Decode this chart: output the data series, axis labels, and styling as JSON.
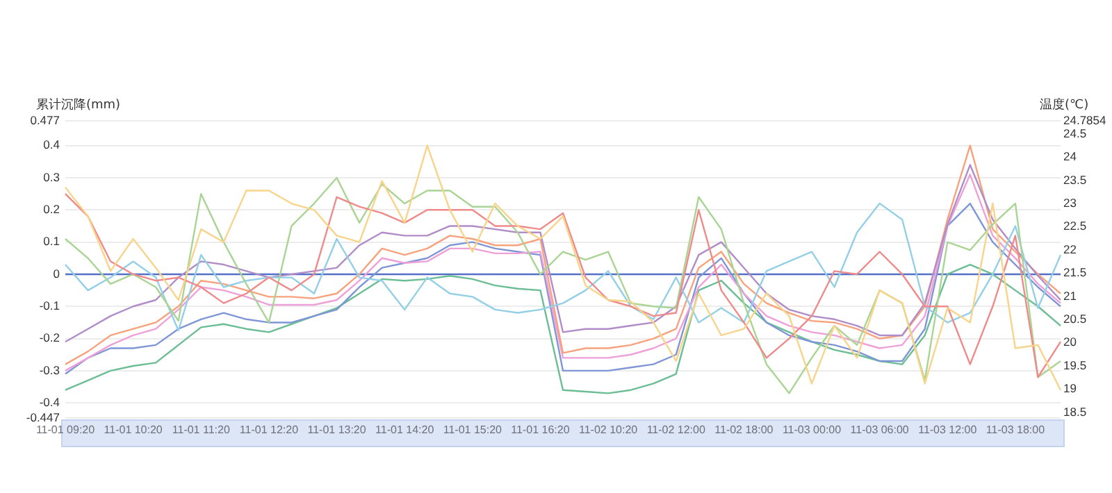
{
  "chart_data": {
    "type": "line",
    "ylabel": "累计沉降(mm)",
    "y2label": "温度(℃)",
    "categories": [
      "11-01 09:20",
      null,
      null,
      "11-01 10:20",
      null,
      null,
      "11-01 11:20",
      null,
      null,
      "11-01 12:20",
      null,
      null,
      "11-01 13:20",
      null,
      null,
      "11-01 14:20",
      null,
      null,
      "11-01 15:20",
      null,
      null,
      "11-01 16:20",
      null,
      null,
      "11-02 10:20",
      null,
      null,
      "11-02 12:00",
      null,
      null,
      "11-02 18:00",
      null,
      null,
      "11-03 00:00",
      null,
      null,
      "11-03 06:00",
      null,
      null,
      "11-03 12:00",
      null,
      null,
      "11-03 18:00",
      null,
      null
    ],
    "series": [
      {
        "color": "#f8d48a",
        "values": [
          0.27,
          0.18,
          0.01,
          0.11,
          0.02,
          -0.08,
          0.14,
          0.1,
          0.26,
          0.26,
          0.22,
          0.2,
          0.12,
          0.1,
          0.29,
          0.16,
          0.4,
          0.2,
          0.07,
          0.22,
          0.15,
          0.11,
          0.18,
          -0.035,
          -0.08,
          -0.085,
          -0.15,
          -0.27,
          -0.06,
          -0.19,
          -0.17,
          -0.06,
          -0.13,
          -0.34,
          -0.16,
          -0.26,
          -0.05,
          -0.09,
          -0.34,
          -0.105,
          -0.15,
          0.22,
          -0.23,
          -0.22,
          -0.36
        ]
      },
      {
        "color": "#ef8a8a",
        "values": [
          0.25,
          0.18,
          0.04,
          0.0,
          -0.02,
          -0.01,
          -0.04,
          -0.09,
          -0.06,
          -0.01,
          -0.05,
          0.0,
          0.24,
          0.21,
          0.19,
          0.16,
          0.2,
          0.2,
          0.2,
          0.15,
          0.15,
          0.14,
          0.19,
          -0.01,
          -0.08,
          -0.1,
          -0.13,
          -0.12,
          0.2,
          -0.05,
          -0.15,
          -0.26,
          -0.2,
          -0.13,
          0.01,
          0.0,
          0.07,
          0.0,
          -0.1,
          -0.1,
          -0.28,
          -0.1,
          0.12,
          -0.32,
          -0.21
        ]
      },
      {
        "color": "#a9d493",
        "values": [
          0.11,
          0.05,
          -0.03,
          0.0,
          -0.04,
          -0.145,
          0.25,
          0.1,
          -0.03,
          -0.15,
          0.15,
          0.22,
          0.3,
          0.16,
          0.28,
          0.22,
          0.26,
          0.26,
          0.21,
          0.21,
          0.13,
          0.0,
          0.07,
          0.045,
          0.07,
          -0.09,
          -0.1,
          -0.105,
          0.24,
          0.14,
          -0.09,
          -0.28,
          -0.37,
          -0.26,
          -0.16,
          -0.22,
          -0.05,
          -0.09,
          -0.33,
          0.1,
          0.075,
          0.155,
          0.22,
          -0.32,
          -0.27
        ]
      },
      {
        "color": "#93cfe6",
        "values": [
          0.03,
          -0.05,
          -0.01,
          0.04,
          -0.01,
          -0.175,
          0.06,
          -0.04,
          -0.02,
          -0.01,
          -0.01,
          -0.06,
          0.11,
          -0.01,
          -0.02,
          -0.11,
          -0.01,
          -0.06,
          -0.07,
          -0.11,
          -0.12,
          -0.11,
          -0.09,
          -0.05,
          0.01,
          -0.1,
          -0.14,
          -0.01,
          -0.15,
          -0.105,
          -0.15,
          0.01,
          0.04,
          0.07,
          -0.04,
          0.13,
          0.22,
          0.17,
          -0.1,
          -0.15,
          -0.12,
          0.0,
          0.15,
          -0.105,
          0.06
        ]
      },
      {
        "color": "#b08cc8",
        "values": [
          -0.21,
          -0.17,
          -0.13,
          -0.1,
          -0.08,
          -0.01,
          0.04,
          0.03,
          0.01,
          -0.01,
          0.0,
          0.01,
          0.02,
          0.09,
          0.13,
          0.12,
          0.12,
          0.15,
          0.15,
          0.14,
          0.13,
          0.13,
          -0.18,
          -0.17,
          -0.17,
          -0.16,
          -0.15,
          -0.1,
          0.06,
          0.1,
          0.02,
          -0.06,
          -0.11,
          -0.13,
          -0.14,
          -0.16,
          -0.19,
          -0.19,
          -0.09,
          0.155,
          0.34,
          0.17,
          0.08,
          -0.005,
          -0.08
        ]
      },
      {
        "color": "#f7a27d",
        "values": [
          -0.28,
          -0.24,
          -0.19,
          -0.17,
          -0.15,
          -0.1,
          -0.02,
          -0.03,
          -0.05,
          -0.07,
          -0.07,
          -0.075,
          -0.06,
          0.0,
          0.08,
          0.06,
          0.08,
          0.12,
          0.11,
          0.09,
          0.09,
          0.11,
          -0.245,
          -0.23,
          -0.23,
          -0.22,
          -0.2,
          -0.17,
          0.02,
          0.07,
          -0.03,
          -0.09,
          -0.12,
          -0.145,
          -0.15,
          -0.17,
          -0.2,
          -0.19,
          -0.1,
          0.17,
          0.4,
          0.14,
          0.07,
          0.0,
          -0.06
        ]
      },
      {
        "color": "#eea0d9",
        "values": [
          -0.3,
          -0.26,
          -0.22,
          -0.19,
          -0.17,
          -0.11,
          -0.04,
          -0.05,
          -0.07,
          -0.095,
          -0.095,
          -0.095,
          -0.08,
          -0.02,
          0.05,
          0.035,
          0.04,
          0.08,
          0.08,
          0.065,
          0.065,
          0.07,
          -0.26,
          -0.26,
          -0.26,
          -0.25,
          -0.23,
          -0.2,
          -0.04,
          0.03,
          -0.06,
          -0.13,
          -0.16,
          -0.18,
          -0.19,
          -0.21,
          -0.23,
          -0.22,
          -0.13,
          0.15,
          0.31,
          0.12,
          0.05,
          -0.03,
          -0.09
        ]
      },
      {
        "color": "#7f96d6",
        "values": [
          -0.31,
          -0.26,
          -0.23,
          -0.23,
          -0.22,
          -0.17,
          -0.14,
          -0.12,
          -0.14,
          -0.15,
          -0.15,
          -0.13,
          -0.11,
          -0.04,
          0.02,
          0.035,
          0.05,
          0.09,
          0.1,
          0.08,
          0.07,
          0.06,
          -0.3,
          -0.3,
          -0.3,
          -0.29,
          -0.28,
          -0.25,
          -0.01,
          0.05,
          -0.06,
          -0.15,
          -0.19,
          -0.21,
          -0.22,
          -0.24,
          -0.27,
          -0.27,
          -0.17,
          0.15,
          0.22,
          0.1,
          0.03,
          -0.04,
          -0.1
        ]
      },
      {
        "color": "#6bbd94",
        "values": [
          -0.36,
          -0.33,
          -0.3,
          -0.285,
          -0.275,
          -0.22,
          -0.165,
          -0.155,
          -0.17,
          -0.18,
          -0.155,
          -0.13,
          -0.105,
          -0.06,
          -0.015,
          -0.02,
          -0.015,
          -0.005,
          -0.015,
          -0.035,
          -0.045,
          -0.05,
          -0.36,
          -0.365,
          -0.37,
          -0.36,
          -0.34,
          -0.31,
          -0.05,
          -0.02,
          -0.09,
          -0.15,
          -0.18,
          -0.21,
          -0.235,
          -0.25,
          -0.27,
          -0.28,
          -0.19,
          0.0,
          0.03,
          0.0,
          -0.05,
          -0.1,
          -0.16
        ]
      }
    ],
    "ylim": [
      -0.447,
      0.477
    ],
    "yticks": [
      -0.447,
      -0.4,
      -0.3,
      -0.2,
      -0.1,
      0,
      0.1,
      0.2,
      0.3,
      0.4,
      0.477
    ],
    "y2lim": [
      18.38,
      24.7854
    ],
    "y2ticks": [
      18.5,
      19,
      19.5,
      20,
      20.5,
      21,
      21.5,
      22,
      22.5,
      23,
      23.5,
      24,
      24.5,
      24.7854
    ],
    "ref_lines": [
      {
        "axis": "y",
        "value": 0,
        "color": "#5470c6"
      }
    ],
    "grid": "y",
    "legend": false,
    "marker": "none",
    "line_style": "solid"
  }
}
